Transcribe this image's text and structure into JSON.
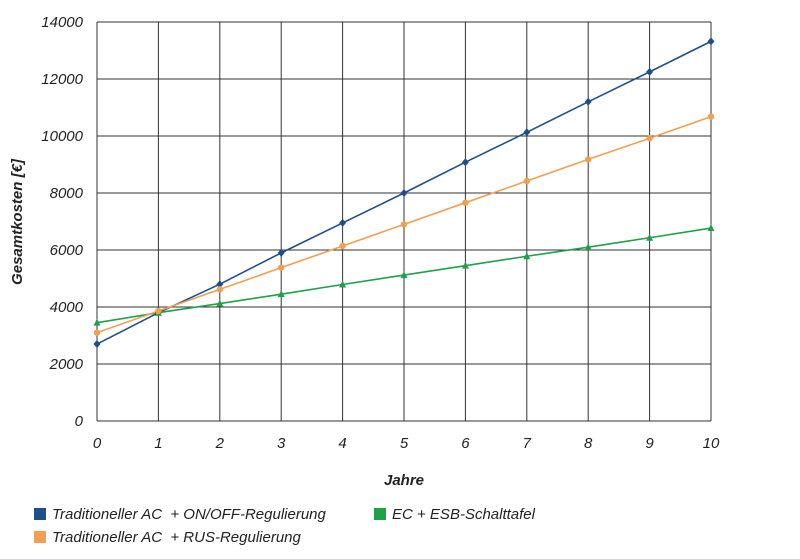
{
  "chart_data": {
    "type": "line",
    "title": "",
    "xlabel": "Jahre",
    "ylabel": "Gesamtkosten [€]",
    "x": [
      0,
      1,
      2,
      3,
      4,
      5,
      6,
      7,
      8,
      9,
      10
    ],
    "xlim": [
      0,
      10
    ],
    "ylim": [
      0,
      14000
    ],
    "yticks": [
      0,
      2000,
      4000,
      6000,
      8000,
      10000,
      12000,
      14000
    ],
    "grid": true,
    "legend_position": "bottom",
    "series": [
      {
        "name": "Traditioneller AC  + ON/OFF-Regulierung",
        "color": "#1f4e8c",
        "marker": "diamond",
        "values": [
          2700,
          3800,
          4800,
          5900,
          6950,
          8000,
          9080,
          10130,
          11200,
          12250,
          13320
        ]
      },
      {
        "name": "EC + ESB-Schalttafel",
        "color": "#1fa04a",
        "marker": "triangle",
        "values": [
          3450,
          3800,
          4120,
          4450,
          4790,
          5120,
          5450,
          5780,
          6100,
          6430,
          6770
        ]
      },
      {
        "name": "Traditioneller AC  + RUS-Regulierung",
        "color": "#f0a050",
        "marker": "circle",
        "values": [
          3100,
          3860,
          4620,
          5380,
          6140,
          6900,
          7660,
          8420,
          9180,
          9920,
          10680
        ]
      }
    ]
  }
}
